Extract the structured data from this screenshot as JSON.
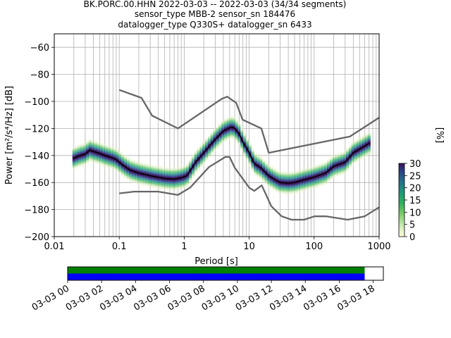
{
  "chart_data": [
    {
      "type": "line",
      "title": [
        "BK.PORC.00.HHN   2022-03-03 -- 2022-03-03  (34/34 segments)",
        "sensor_type MBB-2 sensor_sn 184476",
        "datalogger_type Q330S+ datalogger_sn 6433"
      ],
      "xlabel": "Period [s]",
      "ylabel": "Power [m²/s⁴/Hz] [dB]",
      "xscale": "log",
      "xlim": [
        0.01,
        1000
      ],
      "ylim": [
        -200,
        -50
      ],
      "xticks": [
        0.01,
        0.1,
        1,
        10,
        100,
        1000
      ],
      "xtick_labels": [
        "0.01",
        "0.1",
        "1",
        "10",
        "100",
        "1000"
      ],
      "yticks": [
        -200,
        -180,
        -160,
        -140,
        -120,
        -100,
        -80,
        -60
      ],
      "ytick_labels": [
        "−200",
        "−180",
        "−160",
        "−140",
        "−120",
        "−100",
        "−80",
        "−60"
      ],
      "grid": true,
      "series": [
        {
          "role": "high noise model",
          "color": "#666666",
          "x": [
            0.1,
            0.22,
            0.32,
            0.8,
            3.8,
            4.6,
            6.3,
            7.9,
            15.4,
            20,
            354.8,
            1000
          ],
          "y": [
            -91.5,
            -97.4,
            -110.5,
            -120,
            -98,
            -96.5,
            -101,
            -113.5,
            -120,
            -138,
            -126,
            -112
          ]
        },
        {
          "role": "low noise model",
          "color": "#666666",
          "x": [
            0.1,
            0.17,
            0.4,
            0.8,
            1.24,
            2.4,
            4.3,
            5,
            6,
            10,
            12,
            15.6,
            21.9,
            31.6,
            45,
            70,
            101,
            154,
            328,
            600,
            1000
          ],
          "y": [
            -168,
            -166.7,
            -166.7,
            -169.2,
            -163.7,
            -148.6,
            -141.1,
            -141.1,
            -149,
            -163.8,
            -166.2,
            -162.1,
            -177.5,
            -185,
            -187.5,
            -187.5,
            -185,
            -185,
            -187.5,
            -185,
            -178.3
          ]
        },
        {
          "role": "mode",
          "color": "#000000",
          "x": [
            0.02,
            0.025,
            0.03,
            0.035,
            0.04,
            0.05,
            0.06,
            0.07,
            0.08,
            0.09,
            0.1,
            0.12,
            0.15,
            0.2,
            0.3,
            0.5,
            0.7,
            0.9,
            1.1,
            1.5,
            2,
            3,
            4,
            5,
            5.5,
            6,
            7,
            8,
            10,
            12,
            15,
            20,
            25,
            30,
            40,
            50,
            70,
            100,
            150,
            200,
            300,
            400,
            600,
            700
          ],
          "y": [
            -142,
            -140,
            -139,
            -136,
            -137,
            -138.5,
            -140,
            -141,
            -142,
            -143,
            -145,
            -148,
            -151,
            -153,
            -155,
            -157,
            -157.5,
            -156.5,
            -155,
            -145,
            -138,
            -128,
            -122,
            -119.5,
            -119,
            -120,
            -124,
            -130,
            -138,
            -146,
            -149,
            -155,
            -158,
            -160,
            -160.5,
            -160,
            -158,
            -156,
            -153,
            -148,
            -145,
            -138,
            -133,
            -131
          ]
        }
      ],
      "colorbar": {
        "label": "[%]",
        "min": 0,
        "max": 30,
        "ticks": [
          0,
          5,
          10,
          15,
          20,
          25,
          30
        ],
        "tick_labels": [
          "0",
          "5",
          "10",
          "15",
          "20",
          "25",
          "30"
        ]
      }
    },
    {
      "type": "timeline",
      "xlim_hours": [
        0,
        18.6
      ],
      "tick_hours": [
        0,
        2,
        4,
        6,
        8,
        10,
        12,
        14,
        16,
        18
      ],
      "tick_labels": [
        "03-03 00",
        "03-03 02",
        "03-03 04",
        "03-03 06",
        "03-03 08",
        "03-03 10",
        "03-03 12",
        "03-03 14",
        "03-03 16",
        "03-03 18"
      ],
      "bars": [
        {
          "color": "#008000",
          "start_hour": 0,
          "end_hour": 17.5
        },
        {
          "color": "#0000ff",
          "start_hour": 0,
          "end_hour": 17.5
        }
      ]
    }
  ]
}
